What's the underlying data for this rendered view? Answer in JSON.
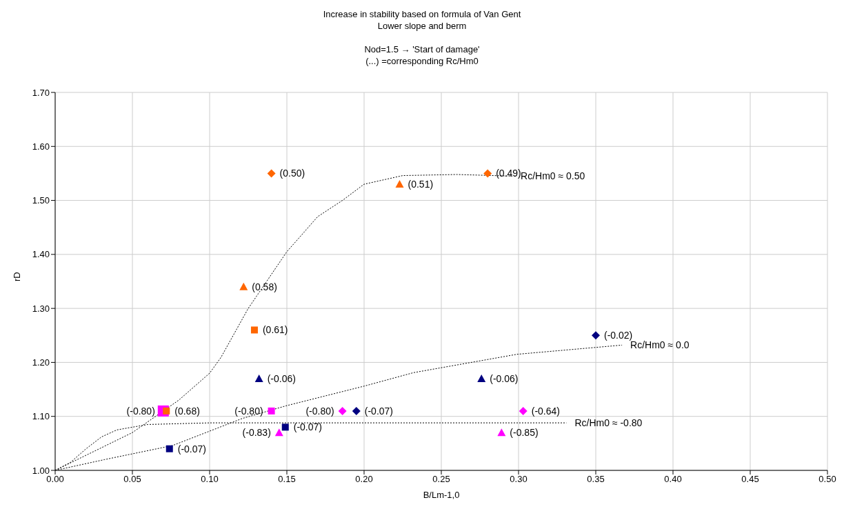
{
  "chart_data": {
    "type": "scatter",
    "title": "Increase in  stability based on formula of Van Gent",
    "subtitle": "Lower slope and berm",
    "xlabel": "B/Lm-1,0",
    "ylabel": "rD",
    "xlim": [
      0,
      0.5
    ],
    "ylim": [
      1,
      1.7
    ],
    "xticks": [
      {
        "value": 0,
        "label": "0.00"
      },
      {
        "value": 0.05,
        "label": "0.05"
      },
      {
        "value": 0.1,
        "label": "0.10"
      },
      {
        "value": 0.15,
        "label": "0.15"
      },
      {
        "value": 0.2,
        "label": "0.20"
      },
      {
        "value": 0.25,
        "label": "0.25"
      },
      {
        "value": 0.3,
        "label": "0.30"
      },
      {
        "value": 0.35,
        "label": "0.35"
      },
      {
        "value": 0.4,
        "label": "0.40"
      },
      {
        "value": 0.45,
        "label": "0.45"
      },
      {
        "value": 0.5,
        "label": "0.50"
      }
    ],
    "yticks": [
      {
        "value": 1,
        "label": "1.00"
      },
      {
        "value": 1.1,
        "label": "1.10"
      },
      {
        "value": 1.2,
        "label": "1.20"
      },
      {
        "value": 1.3,
        "label": "1.30"
      },
      {
        "value": 1.4,
        "label": "1.40"
      },
      {
        "value": 1.5,
        "label": "1.50"
      },
      {
        "value": 1.6,
        "label": "1.60"
      },
      {
        "value": 1.7,
        "label": "1.70"
      }
    ],
    "grid": true,
    "legend": false,
    "series": [
      {
        "type": "line",
        "color": "#000000",
        "line_style": "dotted",
        "marker": "none",
        "x": [
          0,
          0.05,
          0.08,
          0.1,
          0.1075,
          0.125,
          0.15,
          0.17,
          0.186,
          0.2,
          0.225,
          0.26,
          0.296
        ],
        "values": [
          1,
          1.07,
          1.13,
          1.18,
          1.21,
          1.3,
          1.405,
          1.47,
          1.5,
          1.53,
          1.546,
          1.548,
          1.545
        ]
      },
      {
        "type": "line",
        "color": "#000000",
        "line_style": "dotted",
        "marker": "none",
        "x": [
          0,
          0.032,
          0.076,
          0.121,
          0.15,
          0.2,
          0.232,
          0.299,
          0.367
        ],
        "values": [
          1,
          1.02,
          1.046,
          1.096,
          1.12,
          1.156,
          1.181,
          1.215,
          1.232
        ]
      },
      {
        "type": "line",
        "color": "#000000",
        "line_style": "dotted",
        "marker": "none",
        "x": [
          0,
          0.01,
          0.02,
          0.03,
          0.04,
          0.06,
          0.1,
          0.2,
          0.331
        ],
        "values": [
          1,
          1.015,
          1.04,
          1.062,
          1.075,
          1.085,
          1.088,
          1.088,
          1.088
        ]
      },
      {
        "color": "#ff00ff",
        "marker": "square",
        "x": [
          0.07,
          0.14
        ],
        "values": [
          1.11,
          1.11
        ]
      },
      {
        "color": "#ff00ff",
        "marker": "diamond",
        "x": [
          0.186,
          0.303
        ],
        "values": [
          1.11,
          1.11
        ]
      },
      {
        "color": "#ff00ff",
        "marker": "triangle",
        "x": [
          0.145,
          0.289
        ],
        "values": [
          1.07,
          1.07
        ]
      },
      {
        "color": "#ff6600",
        "marker": "diamond",
        "x": [
          0.14,
          0.28
        ],
        "values": [
          1.55,
          1.55
        ]
      },
      {
        "color": "#ff6600",
        "marker": "triangle",
        "x": [
          0.223,
          0.122
        ],
        "values": [
          1.53,
          1.34
        ]
      },
      {
        "color": "#ff6600",
        "marker": "square",
        "x": [
          0.129,
          0.072
        ],
        "values": [
          1.26,
          1.11
        ]
      },
      {
        "color": "#000080",
        "marker": "triangle",
        "x": [
          0.132,
          0.276
        ],
        "values": [
          1.17,
          1.17
        ]
      },
      {
        "color": "#000080",
        "marker": "diamond",
        "x": [
          0.35,
          0.195
        ],
        "values": [
          1.25,
          1.11
        ]
      },
      {
        "color": "#000080",
        "marker": "square",
        "x": [
          0.149,
          0.074
        ],
        "values": [
          1.08,
          1.04
        ]
      }
    ],
    "annotations": [
      "Nod=1.5 → 'Start of damage'",
      "(...) =corresponding Rc/Hm0",
      {
        "text": "(0.50)",
        "x": 0.14,
        "y": 1.55
      },
      {
        "text": "(0.49)",
        "x": 0.28,
        "y": 1.55
      },
      {
        "text": "(0.51)",
        "x": 0.223,
        "y": 1.53
      },
      {
        "text": "(0.58)",
        "x": 0.122,
        "y": 1.34
      },
      {
        "text": "(0.61)",
        "x": 0.129,
        "y": 1.26
      },
      {
        "text": "(0.68)",
        "x": 0.072,
        "y": 1.11
      },
      {
        "text": "(-0.80)",
        "x": 0.07,
        "y": 1.11
      },
      {
        "text": "(-0.80)",
        "x": 0.14,
        "y": 1.11
      },
      {
        "text": "(-0.80)",
        "x": 0.186,
        "y": 1.11
      },
      {
        "text": "(-0.07)",
        "x": 0.195,
        "y": 1.11
      },
      {
        "text": "(-0.83)",
        "x": 0.145,
        "y": 1.07
      },
      {
        "text": "(-0.07)",
        "x": 0.149,
        "y": 1.08
      },
      {
        "text": "(-0.07)",
        "x": 0.074,
        "y": 1.04
      },
      {
        "text": "(-0.06)",
        "x": 0.132,
        "y": 1.17
      },
      {
        "text": "(-0.06)",
        "x": 0.276,
        "y": 1.17
      },
      {
        "text": "(-0.02)",
        "x": 0.35,
        "y": 1.25
      },
      {
        "text": "(-0.64)",
        "x": 0.303,
        "y": 1.11
      },
      {
        "text": "(-0.85)",
        "x": 0.289,
        "y": 1.07
      },
      {
        "text": "Rc/Hm0 ≈ 0.50",
        "x": 0.296,
        "y": 1.545
      },
      {
        "text": "Rc/Hm0 ≈ 0.0",
        "x": 0.367,
        "y": 1.232
      },
      {
        "text": "Rc/Hm0 ≈ -0.80",
        "x": 0.331,
        "y": 1.088
      }
    ]
  }
}
